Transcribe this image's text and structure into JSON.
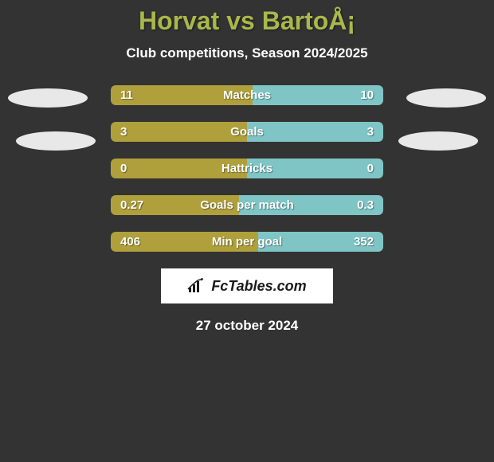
{
  "title": "Horvat vs BartoÅ¡",
  "subtitle": "Club competitions, Season 2024/2025",
  "colors": {
    "background": "#333333",
    "title_color": "#a8b84a",
    "text_color": "#ffffff",
    "badge_color": "#e8e8e8",
    "logo_bg": "#ffffff",
    "logo_text": "#1a1a1a"
  },
  "stats": [
    {
      "label": "Matches",
      "left_value": "11",
      "right_value": "10",
      "left_fill_pct": 52,
      "right_fill_pct": 48,
      "left_color": "#b0a03c",
      "right_color": "#7fc5c5"
    },
    {
      "label": "Goals",
      "left_value": "3",
      "right_value": "3",
      "left_fill_pct": 50,
      "right_fill_pct": 50,
      "left_color": "#b0a03c",
      "right_color": "#7fc5c5"
    },
    {
      "label": "Hattricks",
      "left_value": "0",
      "right_value": "0",
      "left_fill_pct": 50,
      "right_fill_pct": 50,
      "left_color": "#b0a03c",
      "right_color": "#7fc5c5"
    },
    {
      "label": "Goals per match",
      "left_value": "0.27",
      "right_value": "0.3",
      "left_fill_pct": 47,
      "right_fill_pct": 53,
      "left_color": "#b0a03c",
      "right_color": "#7fc5c5"
    },
    {
      "label": "Min per goal",
      "left_value": "406",
      "right_value": "352",
      "left_fill_pct": 54,
      "right_fill_pct": 46,
      "left_color": "#b0a03c",
      "right_color": "#7fc5c5"
    }
  ],
  "logo": {
    "text": "FcTables.com"
  },
  "date": "27 october 2024"
}
